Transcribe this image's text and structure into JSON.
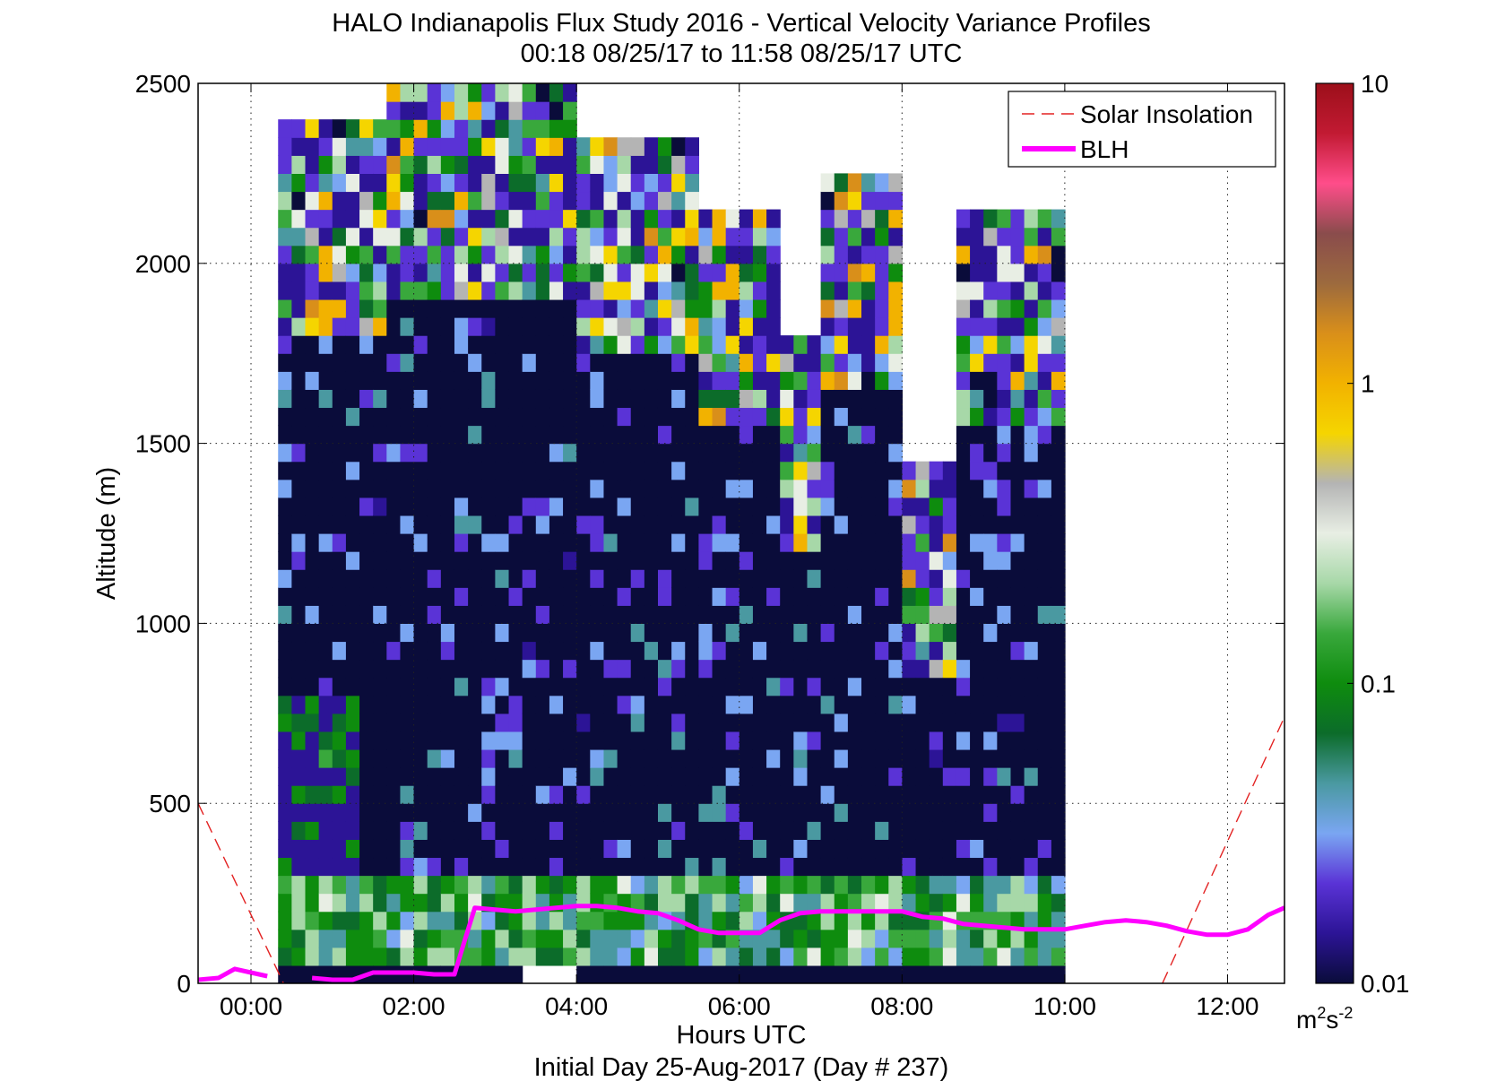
{
  "chart_data": {
    "type": "heatmap",
    "title": "HALO Indianapolis Flux Study 2016 - Vertical Velocity Variance Profiles",
    "subtitle": "00:18 08/25/17 to 11:58 08/25/17  UTC",
    "xlabel": "Hours UTC",
    "xlabel2": "Initial Day 25-Aug-2017 (Day # 237)",
    "ylabel": "Altitude (m)",
    "xlim": [
      -0.65,
      12.7
    ],
    "ylim": [
      0,
      2500
    ],
    "x_ticks": [
      0,
      2,
      4,
      6,
      8,
      10,
      12
    ],
    "x_tick_labels": [
      "00:00",
      "02:00",
      "04:00",
      "06:00",
      "08:00",
      "10:00",
      "12:00"
    ],
    "y_ticks": [
      0,
      500,
      1000,
      1500,
      2000,
      2500
    ],
    "y_tick_labels": [
      "0",
      "500",
      "1000",
      "1500",
      "2000",
      "2500"
    ],
    "grid": true,
    "colorbar": {
      "scale": "log",
      "range": [
        0.01,
        10
      ],
      "ticks": [
        0.01,
        0.1,
        1,
        10
      ],
      "tick_labels": [
        "0.01",
        "0.1",
        "1",
        "10"
      ],
      "units_base": "m",
      "units_sup1": "2",
      "units_mid": "s",
      "units_sup2": "-2",
      "colors": [
        "#0a0c3a",
        "#2c1496",
        "#5a33d6",
        "#7aa6f2",
        "#4a99a1",
        "#0c6c2a",
        "#0e8c0e",
        "#39a83c",
        "#a7d8a8",
        "#e8eee4",
        "#b4b4b4",
        "#f5d500",
        "#f2b200",
        "#d98f1a",
        "#9c6a3e",
        "#8a4c4c",
        "#ff4d8a",
        "#c21a33",
        "#9c0f1a"
      ]
    },
    "legend": {
      "position": "top-right",
      "entries": [
        {
          "name": "Solar Insolation",
          "color": "#e32222",
          "style": "dashed"
        },
        {
          "name": "BLH",
          "color": "#ff00ff",
          "style": "solid"
        }
      ]
    },
    "heatmap": {
      "x_start": 0.333,
      "x_step": 0.1667,
      "y_step": 50,
      "columns": 58,
      "rows": 50
    },
    "blh_series": {
      "name": "BLH",
      "x": [
        -0.65,
        -0.4,
        -0.2,
        0,
        0.2,
        0.5,
        0.75,
        1.0,
        1.25,
        1.5,
        1.75,
        2.0,
        2.25,
        2.5,
        2.6,
        2.75,
        3.0,
        3.25,
        3.5,
        3.75,
        4.0,
        4.25,
        4.5,
        4.75,
        5.0,
        5.25,
        5.5,
        5.75,
        6.0,
        6.25,
        6.5,
        6.75,
        7.0,
        7.25,
        7.5,
        7.75,
        8.0,
        8.25,
        8.5,
        8.75,
        9.0,
        9.25,
        9.5,
        9.75,
        10.0,
        10.25,
        10.5,
        10.75,
        11.0,
        11.25,
        11.5,
        11.75,
        12.0,
        12.25,
        12.5,
        12.7
      ],
      "y": [
        10,
        15,
        40,
        30,
        20,
        null,
        15,
        10,
        10,
        30,
        30,
        30,
        25,
        25,
        100,
        210,
        205,
        200,
        205,
        210,
        215,
        215,
        210,
        200,
        195,
        175,
        150,
        140,
        140,
        140,
        175,
        195,
        200,
        200,
        200,
        200,
        200,
        185,
        180,
        165,
        160,
        155,
        150,
        150,
        150,
        160,
        170,
        175,
        170,
        160,
        145,
        135,
        135,
        150,
        190,
        210
      ]
    },
    "solar_series": {
      "name": "Solar Insolation",
      "x": [
        -0.65,
        0.4
      ],
      "y": [
        500,
        0
      ],
      "x2": [
        11.2,
        12.7
      ],
      "y2": [
        0,
        740
      ]
    }
  }
}
